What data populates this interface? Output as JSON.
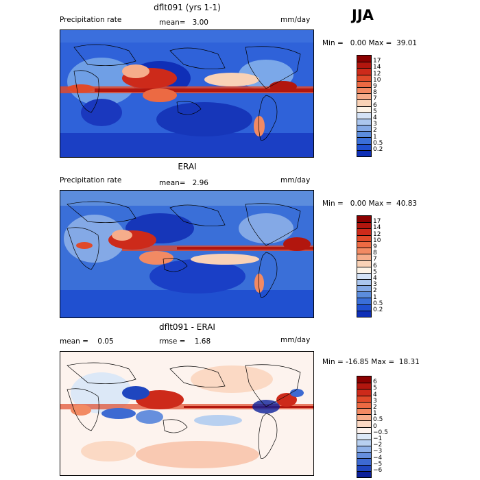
{
  "season": "JJA",
  "panels": [
    {
      "title": "dflt091 (yrs 1-1)",
      "left_label": "Precipitation rate",
      "mid_label": "mean=   3.00",
      "units": "mm/day",
      "minmax": "Min =   0.00 Max =  39.01",
      "colorbar": {
        "labels": [
          "17",
          "14",
          "12",
          "10",
          "9",
          "8",
          "7",
          "6",
          "5",
          "4",
          "3",
          "2",
          "1",
          "0.5",
          "0.2"
        ],
        "colors": [
          "#8b0000",
          "#b2160e",
          "#cd2a1a",
          "#e04a2a",
          "#ec6a43",
          "#f28a63",
          "#f6ad8b",
          "#f9d2b6",
          "#fdf3e6",
          "#d4e2f6",
          "#abc6ee",
          "#84a9e6",
          "#5c8ddd",
          "#3a6fd8",
          "#2050d0",
          "#0e2fb7"
        ]
      }
    },
    {
      "title": "ERAI",
      "left_label": "Precipitation rate",
      "mid_label": "mean=   2.96",
      "units": "mm/day",
      "minmax": "Min =   0.00 Max =  40.83",
      "colorbar": {
        "labels": [
          "17",
          "14",
          "12",
          "10",
          "9",
          "8",
          "7",
          "6",
          "5",
          "4",
          "3",
          "2",
          "1",
          "0.5",
          "0.2"
        ],
        "colors": [
          "#8b0000",
          "#b2160e",
          "#cd2a1a",
          "#e04a2a",
          "#ec6a43",
          "#f28a63",
          "#f6ad8b",
          "#f9d2b6",
          "#fdf3e6",
          "#d4e2f6",
          "#abc6ee",
          "#84a9e6",
          "#5c8ddd",
          "#3a6fd8",
          "#2050d0",
          "#0e2fb7"
        ]
      }
    },
    {
      "title": "dflt091 - ERAI",
      "left_label": "mean =    0.05",
      "mid_label": "rmse =    1.68",
      "units": "mm/day",
      "minmax": "Min = -16.85 Max =  18.31",
      "colorbar": {
        "labels": [
          "6",
          "5",
          "4",
          "3",
          "2",
          "1",
          "0.5",
          "0",
          "−0.5",
          "−1",
          "−2",
          "−3",
          "−4",
          "−5",
          "−6"
        ],
        "colors": [
          "#8b0000",
          "#b2160e",
          "#cd2a1a",
          "#e04a2a",
          "#ec6a43",
          "#f28a63",
          "#f6ad8b",
          "#fbd9c4",
          "#fdf3ee",
          "#dce8f7",
          "#b8d0f0",
          "#8fb1e8",
          "#668fdd",
          "#3d6ad2",
          "#1f46bf",
          "#0b1f9a"
        ]
      }
    }
  ]
}
